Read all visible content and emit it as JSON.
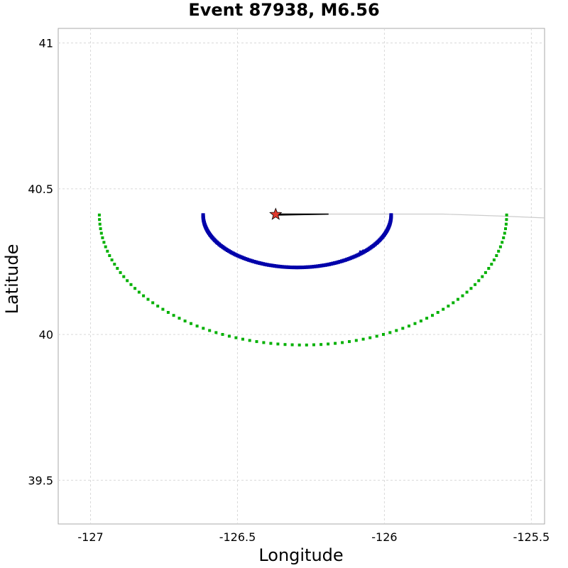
{
  "chart_data": {
    "type": "scatter",
    "title": "Event 87938, M6.56",
    "xlabel": "Longitude",
    "ylabel": "Latitude",
    "xlim": [
      -127.11,
      -125.455
    ],
    "ylim": [
      39.35,
      41.05
    ],
    "grid": true,
    "legend": "none",
    "x_ticks": [
      {
        "value": -127,
        "label": "-127"
      },
      {
        "value": -126.5,
        "label": "-126.5"
      },
      {
        "value": -126,
        "label": "-126"
      },
      {
        "value": -125.5,
        "label": "-125.5"
      }
    ],
    "y_ticks": [
      {
        "value": 39.5,
        "label": "39.5"
      },
      {
        "value": 40,
        "label": "40"
      },
      {
        "value": 40.5,
        "label": "40.5"
      },
      {
        "value": 41,
        "label": "41"
      }
    ],
    "series": [
      {
        "style": "gray-line",
        "color": "#cccccc",
        "x": [
          -126.19,
          -125.98,
          -125.8,
          -125.6,
          -125.455
        ],
        "y": [
          40.413,
          40.413,
          40.413,
          40.406,
          40.4
        ]
      },
      {
        "style": "black-fault-trace",
        "color": "#000000",
        "x": [
          -126.37,
          -126.19
        ],
        "y": [
          40.412,
          40.413
        ]
      },
      {
        "style": "blue-dense-arc",
        "color": "#0000aa",
        "arc": {
          "cx": -126.297,
          "cy": 40.41,
          "rx": 0.32,
          "ry": 0.18,
          "t_start": 180,
          "t_end": 360,
          "count": 150
        },
        "extra_points": [
          {
            "x": -126.07,
            "y": 40.285
          },
          {
            "x": -126.08,
            "y": 40.282
          }
        ]
      },
      {
        "style": "green-dotted-arc",
        "color": "#00b000",
        "arc": {
          "cx": -126.277,
          "cy": 40.41,
          "rx": 0.693,
          "ry": 0.446,
          "t_start": 180,
          "t_end": 360,
          "count": 90
        }
      }
    ],
    "epicenter": {
      "x": -126.37,
      "y": 40.412,
      "marker": "star",
      "fill": "#e03a2e",
      "stroke": "#000000"
    }
  }
}
